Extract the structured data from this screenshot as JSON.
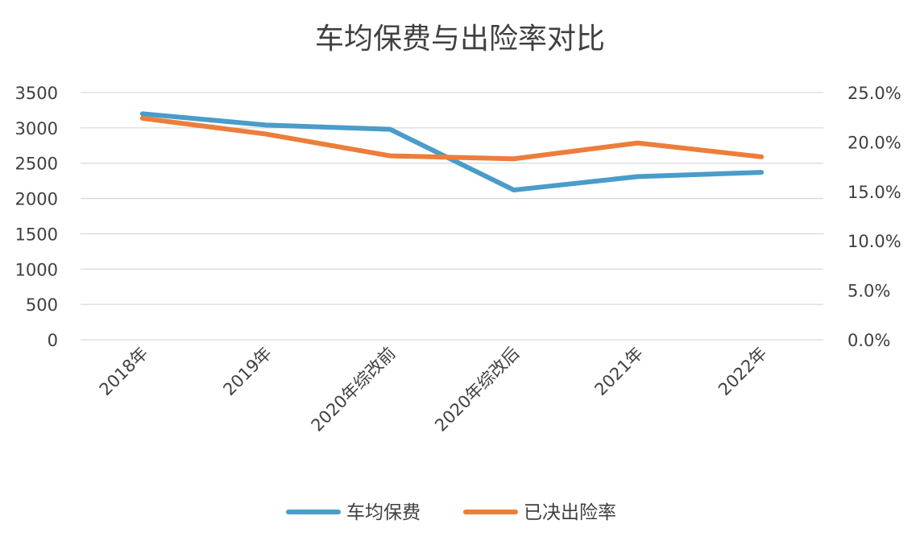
{
  "chart_data": {
    "type": "line",
    "title": "车均保费与出险率对比",
    "categories": [
      "2018年",
      "2019年",
      "2020年综改前",
      "2020年综改后",
      "2021年",
      "2022年"
    ],
    "series": [
      {
        "name": "车均保费",
        "axis": "left",
        "color": "#4a9cc9",
        "values": [
          3200,
          3040,
          2980,
          2120,
          2310,
          2370
        ]
      },
      {
        "name": "已决出险率",
        "axis": "right",
        "color": "#ed7d3a",
        "values": [
          22.4,
          20.8,
          18.6,
          18.3,
          19.9,
          18.5
        ]
      }
    ],
    "y_left": {
      "range": [
        0,
        3500
      ],
      "ticks": [
        "0",
        "500",
        "1000",
        "1500",
        "2000",
        "2500",
        "3000",
        "3500"
      ]
    },
    "y_right": {
      "range": [
        0,
        25
      ],
      "unit": "%",
      "ticks": [
        "0.0%",
        "5.0%",
        "10.0%",
        "15.0%",
        "20.0%",
        "25.0%"
      ]
    },
    "grid": true,
    "legend_position": "bottom"
  }
}
